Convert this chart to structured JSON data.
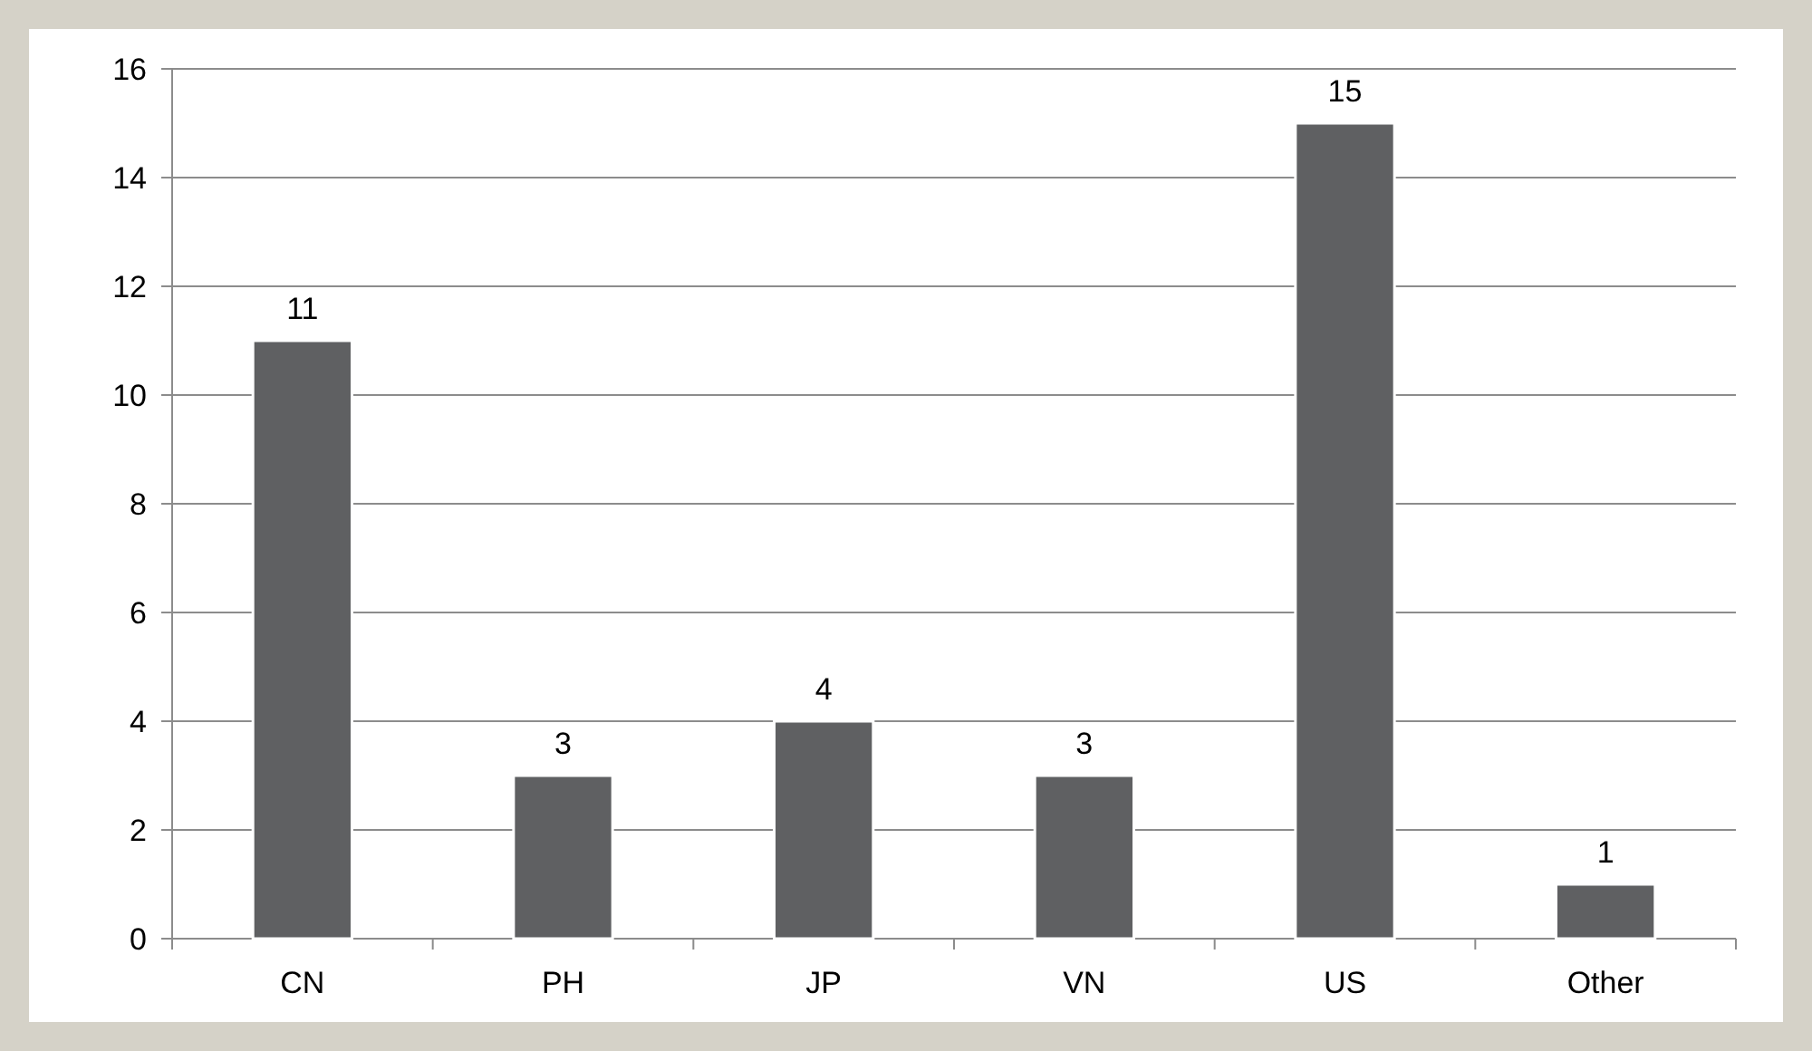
{
  "chart_data": {
    "type": "bar",
    "categories": [
      "CN",
      "PH",
      "JP",
      "VN",
      "US",
      "Other"
    ],
    "values": [
      11,
      3,
      4,
      3,
      15,
      1
    ],
    "color": "#5f6062",
    "ylim": [
      0,
      16
    ],
    "yticks": [
      0,
      2,
      4,
      6,
      8,
      10,
      12,
      14,
      16
    ],
    "grid": "y",
    "data_labels": true
  }
}
